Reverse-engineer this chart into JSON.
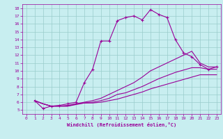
{
  "xlabel": "Windchill (Refroidissement éolien,°C)",
  "xlim": [
    -0.5,
    23.5
  ],
  "ylim": [
    4.5,
    18.5
  ],
  "yticks": [
    5,
    6,
    7,
    8,
    9,
    10,
    11,
    12,
    13,
    14,
    15,
    16,
    17,
    18
  ],
  "xticks": [
    0,
    1,
    2,
    3,
    4,
    5,
    6,
    7,
    8,
    9,
    10,
    11,
    12,
    13,
    14,
    15,
    16,
    17,
    18,
    19,
    20,
    21,
    22,
    23
  ],
  "bg_color": "#c8eef0",
  "line_color": "#990099",
  "grid_color": "#99cccc",
  "curves": [
    {
      "x": [
        1,
        2,
        3,
        4,
        5,
        6,
        7,
        8,
        9,
        10,
        11,
        12,
        13,
        14,
        15,
        16,
        17,
        18,
        19,
        20,
        21,
        22,
        23
      ],
      "y": [
        6.2,
        5.2,
        5.5,
        5.6,
        5.8,
        6.0,
        8.5,
        10.2,
        13.8,
        13.8,
        16.4,
        16.8,
        17.0,
        16.5,
        17.8,
        17.2,
        16.8,
        14.0,
        12.3,
        11.8,
        10.8,
        10.2,
        10.5
      ],
      "marker": true
    },
    {
      "x": [
        1,
        2,
        3,
        4,
        5,
        6,
        7,
        8,
        9,
        10,
        11,
        12,
        13,
        14,
        15,
        16,
        17,
        18,
        19,
        20,
        21,
        22,
        23
      ],
      "y": [
        6.2,
        5.8,
        5.5,
        5.5,
        5.6,
        5.8,
        6.0,
        6.2,
        6.5,
        7.0,
        7.5,
        8.0,
        8.5,
        9.2,
        10.0,
        10.5,
        11.0,
        11.5,
        12.0,
        12.5,
        11.0,
        10.5,
        10.5
      ],
      "marker": false
    },
    {
      "x": [
        1,
        2,
        3,
        4,
        5,
        6,
        7,
        8,
        9,
        10,
        11,
        12,
        13,
        14,
        15,
        16,
        17,
        18,
        19,
        20,
        21,
        22,
        23
      ],
      "y": [
        6.2,
        5.8,
        5.5,
        5.5,
        5.5,
        5.8,
        5.9,
        6.0,
        6.2,
        6.5,
        7.0,
        7.2,
        7.6,
        8.0,
        8.5,
        9.0,
        9.4,
        9.8,
        10.1,
        10.4,
        10.4,
        10.2,
        10.2
      ],
      "marker": false
    },
    {
      "x": [
        1,
        2,
        3,
        4,
        5,
        6,
        7,
        8,
        9,
        10,
        11,
        12,
        13,
        14,
        15,
        16,
        17,
        18,
        19,
        20,
        21,
        22,
        23
      ],
      "y": [
        6.2,
        5.8,
        5.5,
        5.5,
        5.5,
        5.7,
        5.9,
        5.9,
        6.0,
        6.2,
        6.4,
        6.7,
        7.0,
        7.3,
        7.7,
        8.0,
        8.3,
        8.6,
        8.9,
        9.2,
        9.5,
        9.5,
        9.5
      ],
      "marker": false
    }
  ]
}
